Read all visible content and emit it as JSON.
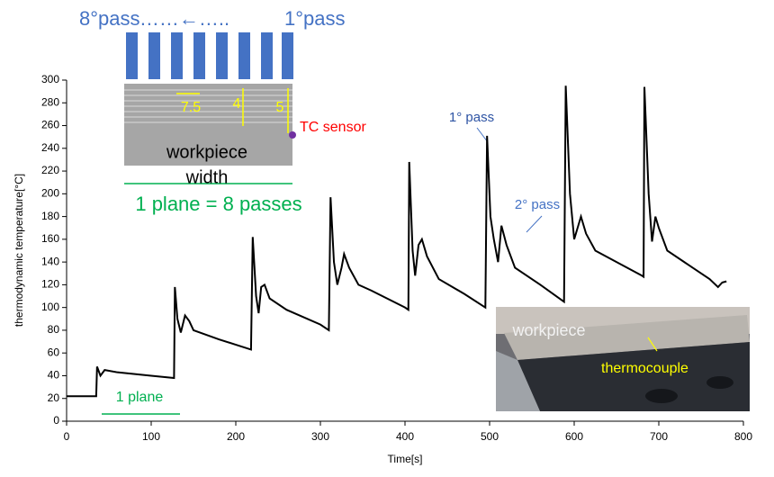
{
  "chart_data": {
    "type": "line",
    "xlabel": "Time[s]",
    "ylabel": "thermodynamic temperature[°C]",
    "x": [
      0,
      35,
      36,
      40,
      45,
      60,
      100,
      127,
      128,
      131,
      135,
      140,
      145,
      150,
      180,
      218,
      220,
      224,
      227,
      230,
      234,
      240,
      260,
      300,
      310,
      312,
      316,
      320,
      325,
      328,
      334,
      345,
      360,
      400,
      404,
      405,
      409,
      412,
      416,
      420,
      426,
      440,
      470,
      495,
      497,
      501,
      505,
      510,
      514,
      520,
      530,
      560,
      588,
      590,
      595,
      600,
      604,
      608,
      614,
      625,
      650,
      680,
      682,
      683,
      688,
      692,
      696,
      700,
      710,
      740,
      760,
      770,
      775,
      780
    ],
    "values": [
      22,
      22,
      48,
      40,
      45,
      43,
      40,
      38,
      118,
      90,
      78,
      93,
      88,
      80,
      72,
      63,
      162,
      110,
      95,
      118,
      120,
      108,
      98,
      85,
      80,
      197,
      140,
      120,
      135,
      147,
      135,
      120,
      115,
      100,
      98,
      228,
      150,
      128,
      155,
      160,
      145,
      125,
      112,
      100,
      251,
      180,
      160,
      140,
      172,
      155,
      135,
      120,
      105,
      295,
      200,
      160,
      170,
      180,
      165,
      150,
      140,
      128,
      127,
      294,
      200,
      158,
      180,
      170,
      150,
      135,
      125,
      118,
      122,
      123
    ],
    "color": "#000000",
    "xlim": [
      0,
      800
    ],
    "xticks": [
      0,
      100,
      200,
      300,
      400,
      500,
      600,
      700,
      800
    ],
    "ylim": [
      0,
      300
    ],
    "yticks": [
      0,
      20,
      40,
      60,
      80,
      100,
      120,
      140,
      160,
      180,
      200,
      220,
      240,
      260,
      280,
      300
    ],
    "grid": false,
    "annotations": [
      "8°pass",
      "……←…..",
      "1°pass",
      "7.5",
      "4",
      "5",
      "TC sensor",
      "workpiece",
      "width",
      "1 plane = 8 passes",
      "1° pass",
      "2° pass",
      "1 plane",
      "workpiece",
      "thermocouple"
    ]
  }
}
